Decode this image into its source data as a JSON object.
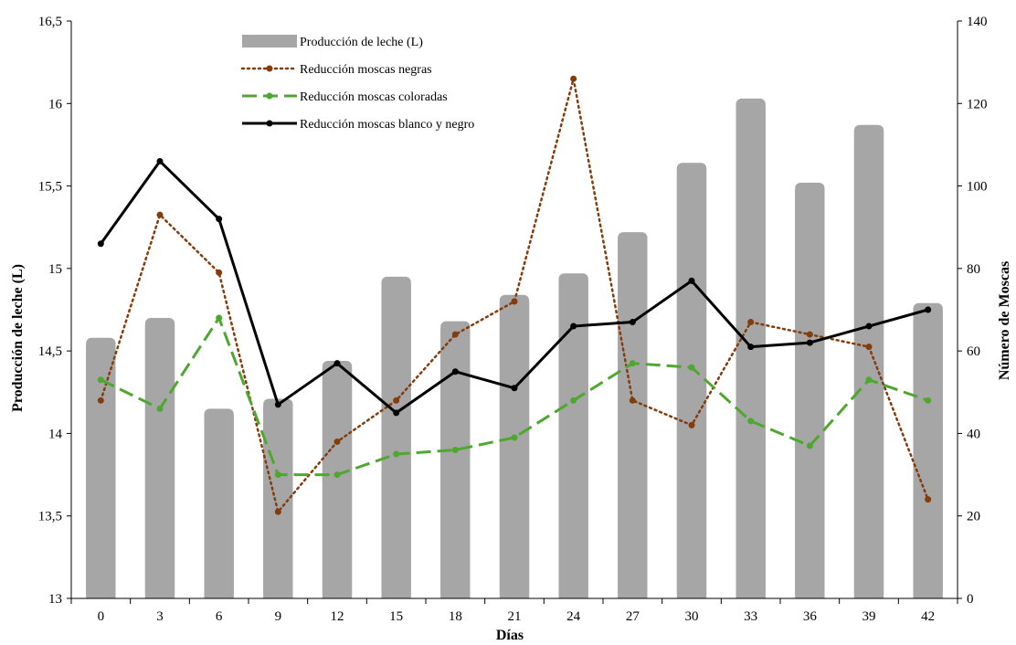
{
  "chart_data": {
    "type": "bar",
    "categories": [
      "0",
      "3",
      "6",
      "9",
      "12",
      "15",
      "18",
      "21",
      "24",
      "27",
      "30",
      "33",
      "36",
      "39",
      "42"
    ],
    "xlabel": "Días",
    "ylabel": "Producción de leche (L)",
    "y2label": "Número de Moscas",
    "ylim": [
      13,
      16.5
    ],
    "y2lim": [
      0,
      140
    ],
    "yticks": [
      "13",
      "13,5",
      "14",
      "14,5",
      "15",
      "15,5",
      "16",
      "16,5"
    ],
    "y2ticks": [
      "0",
      "20",
      "40",
      "60",
      "80",
      "100",
      "120",
      "140"
    ],
    "grid": false,
    "legend_position": "top-left",
    "series": [
      {
        "name": "Producción de leche (L)",
        "kind": "bar",
        "axis": "left",
        "color": "#a6a6a6",
        "values": [
          14.58,
          14.7,
          14.15,
          14.21,
          14.44,
          14.95,
          14.68,
          14.84,
          14.97,
          15.22,
          15.64,
          16.03,
          15.52,
          15.87,
          14.79
        ]
      },
      {
        "name": "Reducción moscas negras",
        "kind": "line",
        "axis": "right",
        "color": "#843c0c",
        "dash": "dotted",
        "values": [
          48,
          93,
          79,
          21,
          38,
          48,
          64,
          72,
          126,
          48,
          42,
          67,
          64,
          61,
          24
        ]
      },
      {
        "name": "Reducción moscas coloradas",
        "kind": "line",
        "axis": "right",
        "color": "#4ea72e",
        "dash": "dashed",
        "values": [
          53,
          46,
          68,
          30,
          30,
          35,
          36,
          39,
          48,
          57,
          56,
          43,
          37,
          53,
          48
        ]
      },
      {
        "name": "Reducción moscas blanco y negro",
        "kind": "line",
        "axis": "right",
        "color": "#000000",
        "dash": "solid",
        "values": [
          86,
          106,
          92,
          47,
          57,
          45,
          55,
          51,
          66,
          67,
          77,
          61,
          62,
          66,
          70
        ]
      }
    ]
  }
}
